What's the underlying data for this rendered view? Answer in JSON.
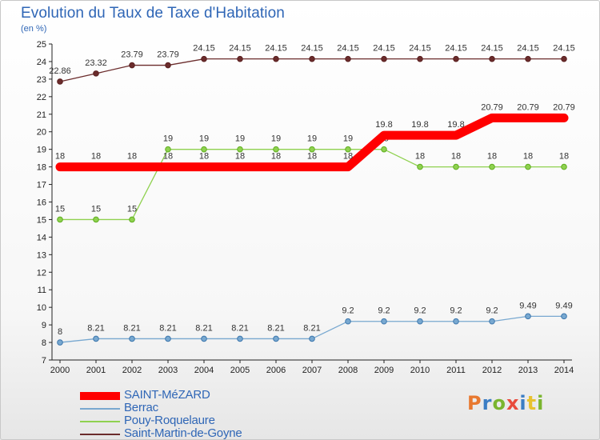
{
  "title": "Evolution du Taux de Taxe d'Habitation",
  "subtitle": "(en %)",
  "logo_text": "Proxiti",
  "logo_colors": [
    "#e8782f",
    "#3b7dc4",
    "#7ab52f",
    "#e84c3d",
    "#3b7dc4",
    "#e8c22f",
    "#7ab52f"
  ],
  "chart_data": {
    "type": "line",
    "categories": [
      "2000",
      "2001",
      "2002",
      "2003",
      "2004",
      "2005",
      "2006",
      "2007",
      "2008",
      "2009",
      "2010",
      "2011",
      "2012",
      "2013",
      "2014"
    ],
    "ylim": [
      7,
      25
    ],
    "yticks": [
      7,
      8,
      9,
      10,
      11,
      12,
      13,
      14,
      15,
      16,
      17,
      18,
      19,
      20,
      21,
      22,
      23,
      24,
      25
    ],
    "grid": false,
    "legend_position": "bottom-left",
    "series": [
      {
        "name": "Saint-Martin-de-Goyne",
        "color": "#6b2c2c",
        "values": [
          22.86,
          23.32,
          23.79,
          23.79,
          24.15,
          24.15,
          24.15,
          24.15,
          24.15,
          24.15,
          24.15,
          24.15,
          24.15,
          24.15,
          24.15
        ],
        "labels": [
          "22.86",
          "23.32",
          "23.79",
          "23.79",
          "24.15",
          "24.15",
          "24.15",
          "24.15",
          "24.15",
          "24.15",
          "24.15",
          "24.15",
          "24.15",
          "24.15",
          "24.15"
        ]
      },
      {
        "name": "Pouy-Roquelaure",
        "color": "#8fd14f",
        "values": [
          15,
          15,
          15,
          19,
          19,
          19,
          19,
          19,
          19,
          19,
          18,
          18,
          18,
          18,
          18
        ],
        "labels": [
          "15",
          "15",
          "15",
          "19",
          "19",
          "19",
          "19",
          "19",
          "19",
          "19",
          "18",
          "18",
          "18",
          "18",
          "18"
        ]
      },
      {
        "name": "Berrac",
        "color": "#78a8d0",
        "values": [
          8,
          8.21,
          8.21,
          8.21,
          8.21,
          8.21,
          8.21,
          8.21,
          9.2,
          9.2,
          9.2,
          9.2,
          9.2,
          9.49,
          9.49
        ],
        "labels": [
          "8",
          "8.21",
          "8.21",
          "8.21",
          "8.21",
          "8.21",
          "8.21",
          "8.21",
          "9.2",
          "9.2",
          "9.2",
          "9.2",
          "9.2",
          "9.49",
          "9.49"
        ]
      },
      {
        "name": "SAINT-MéZARD",
        "color": "#ff0000",
        "values": [
          18,
          18,
          18,
          18,
          18,
          18,
          18,
          18,
          18,
          19.8,
          19.8,
          19.8,
          20.79,
          20.79,
          20.79
        ],
        "labels": [
          "18",
          "18",
          "18",
          "18",
          "18",
          "18",
          "18",
          "18",
          "18",
          "19.8",
          "19.8",
          "19.8",
          "20.79",
          "20.79",
          "20.79"
        ]
      }
    ],
    "legend": [
      "SAINT-MéZARD",
      "Berrac",
      "Pouy-Roquelaure",
      "Saint-Martin-de-Goyne"
    ]
  }
}
